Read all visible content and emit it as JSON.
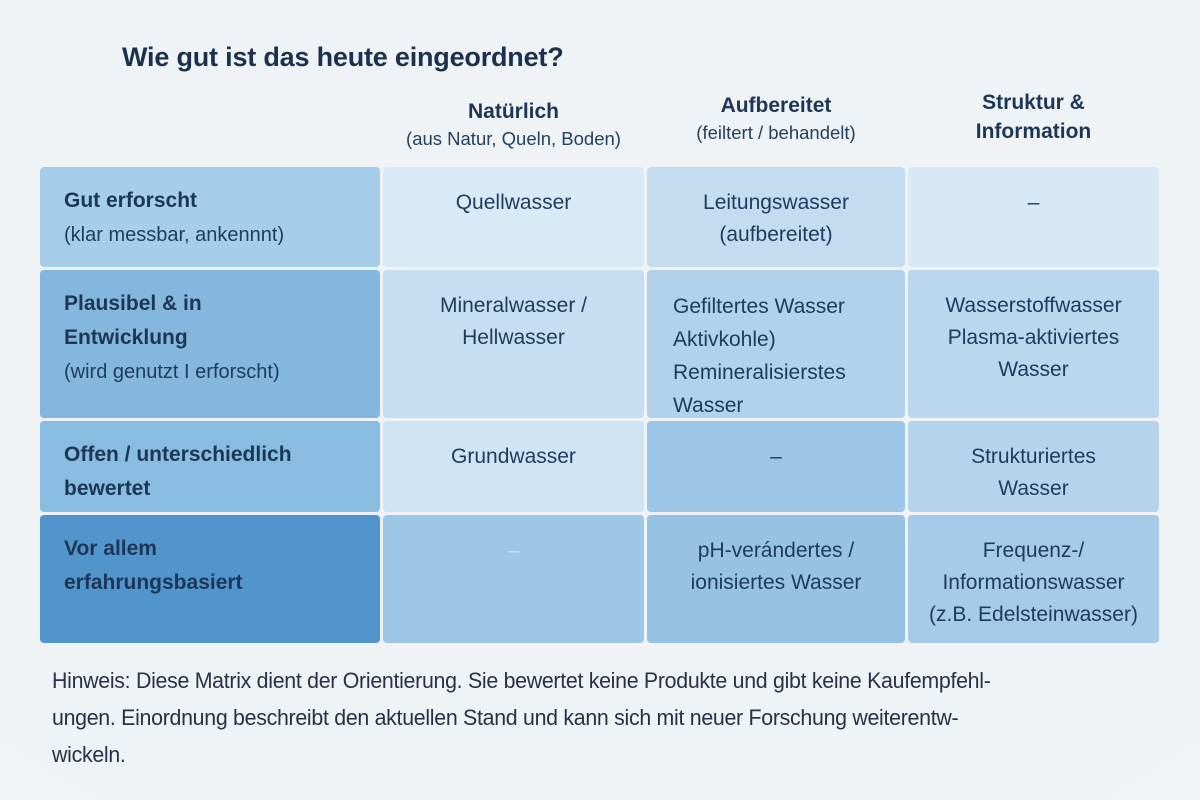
{
  "page": {
    "title": "Wie gut ist das heute eingeordnet?"
  },
  "colors": {
    "background": "#f1f4f7",
    "title_text": "#1b324f",
    "table_text": "#1e3a5c",
    "note_text": "#283147"
  },
  "matrix": {
    "column_headers": [
      {
        "title": "Natürlich",
        "subtitle": "(aus Natur, Queln, Boden)"
      },
      {
        "title": "Aufbereitet",
        "subtitle": "(feiltert / behandelt)"
      },
      {
        "title": "Struktur &\nInformation",
        "subtitle": ""
      }
    ],
    "rows": [
      {
        "header": {
          "title": "Gut erforscht",
          "subtitle": "(klar messbar, ankennnt)",
          "bg": "#a6cdea"
        },
        "cells": [
          {
            "text": "Quellwasser",
            "bg": "#d9eaf7"
          },
          {
            "text": "Leitungswasser\n(aufbereitet)",
            "bg": "#c3dcf0"
          },
          {
            "text": "–",
            "bg": "#d7e9f6"
          }
        ]
      },
      {
        "header": {
          "title": "Plausibel & in\nEntwicklung",
          "subtitle": "(wird genutzt I erforscht)",
          "bg": "#83b7de"
        },
        "cells": [
          {
            "text": "Mineralwasser /\nHellwasser",
            "bg": "#c6def1"
          },
          {
            "text": "Gefiltertes Wasser\nAktivkohle)\nRemineralisierstes\nWasser",
            "bg": "#b2d2eb"
          },
          {
            "text": "Wasserstoffwasser\nPlasma-aktiviertes\nWasser",
            "bg": "#bad7ee"
          }
        ]
      },
      {
        "header": {
          "title": "Offen / unterschiedlich\nbewertet",
          "subtitle": "",
          "bg": "#88bce0"
        },
        "cells": [
          {
            "text": "Grundwasser",
            "bg": "#cfe4f4"
          },
          {
            "text": "–",
            "bg": "#9bc6e7"
          },
          {
            "text": "Strukturiertes\nWasser",
            "bg": "#b5d4ec"
          }
        ]
      },
      {
        "header": {
          "title": "Vor allem\nerfahrungsbasiert",
          "subtitle": "",
          "bg": "#5295cd"
        },
        "cells": [
          {
            "text": "–",
            "bg": "#9dc7e6",
            "text_color": "#c9e0f3"
          },
          {
            "text": "pH-verándertes /\nionisiertes Wasser",
            "bg": "#96c2e3"
          },
          {
            "text": "Frequenz-/\nInformationswasser\n(z.B. Edelsteinwasser)",
            "bg": "#a6cbe8"
          }
        ]
      }
    ]
  },
  "note": {
    "text": "Hinweis: Diese Matrix dient der Orientierung. Sie bewertet keine Produkte und gibt keine Kaufempfehl-\nungen. Einordnung beschreibt den aktuellen Stand und kann sich mit neuer Forschung weiterentw-\nwickeln."
  }
}
